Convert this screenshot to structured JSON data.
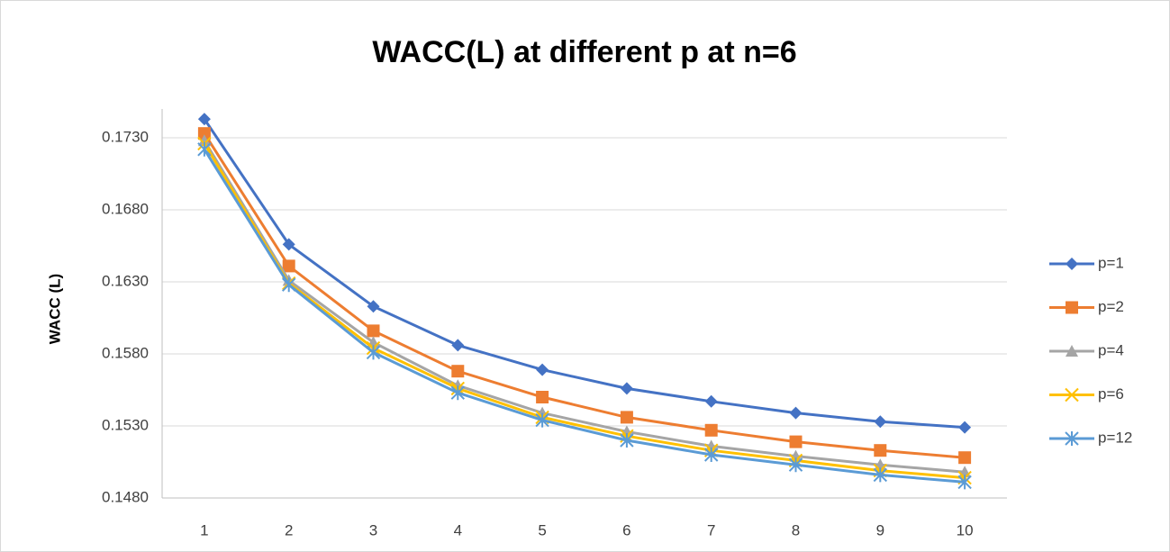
{
  "chart_data": {
    "type": "line",
    "title": "WACC(L) at different p at n=6",
    "y_label": "WACC (L)",
    "categories": [
      "1",
      "2",
      "3",
      "4",
      "5",
      "6",
      "7",
      "8",
      "9",
      "10"
    ],
    "series": [
      {
        "name": "p=1",
        "color": "#4472c4",
        "marker": "diamond",
        "values": [
          0.1743,
          0.1656,
          0.1613,
          0.1586,
          0.1569,
          0.1556,
          0.1547,
          0.1539,
          0.1533,
          0.1529
        ]
      },
      {
        "name": "p=2",
        "color": "#ed7d31",
        "marker": "square",
        "values": [
          0.1733,
          0.1641,
          0.1596,
          0.1568,
          0.155,
          0.1536,
          0.1527,
          0.1519,
          0.1513,
          0.1508
        ]
      },
      {
        "name": "p=4",
        "color": "#a5a5a5",
        "marker": "triangle",
        "values": [
          0.1728,
          0.1631,
          0.1588,
          0.1558,
          0.1539,
          0.1526,
          0.1516,
          0.1509,
          0.1503,
          0.1498
        ]
      },
      {
        "name": "p=6",
        "color": "#ffc000",
        "marker": "x",
        "values": [
          0.1726,
          0.1629,
          0.1584,
          0.1556,
          0.1536,
          0.1523,
          0.1513,
          0.1506,
          0.1499,
          0.1494
        ]
      },
      {
        "name": "p=12",
        "color": "#5b9bd5",
        "marker": "star",
        "values": [
          0.1722,
          0.1628,
          0.1581,
          0.1553,
          0.1534,
          0.152,
          0.151,
          0.1503,
          0.1496,
          0.1491
        ]
      }
    ],
    "ylim": [
      0.148,
      0.175
    ],
    "yticks": [
      {
        "value": 0.148,
        "label": "0.1480"
      },
      {
        "value": 0.153,
        "label": "0.1530"
      },
      {
        "value": 0.158,
        "label": "0.1580"
      },
      {
        "value": 0.163,
        "label": "0.1630"
      },
      {
        "value": 0.168,
        "label": "0.1680"
      },
      {
        "value": 0.173,
        "label": "0.1730"
      }
    ],
    "grid": true,
    "legend": "right"
  }
}
